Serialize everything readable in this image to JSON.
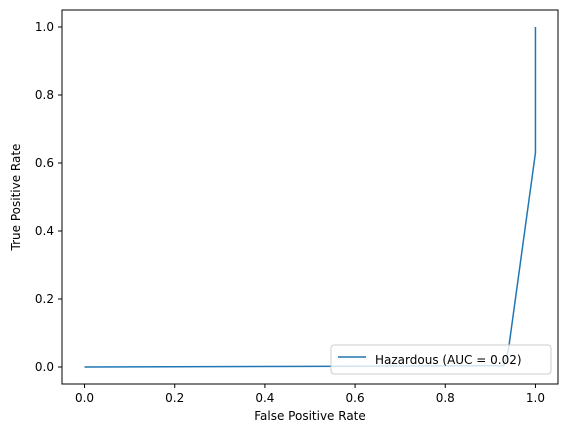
{
  "chart_data": {
    "type": "line",
    "title": "",
    "xlabel": "False Positive Rate",
    "ylabel": "True Positive Rate",
    "xlim": [
      -0.05,
      1.05
    ],
    "ylim": [
      -0.05,
      1.05
    ],
    "xticks": [
      0.0,
      0.2,
      0.4,
      0.6,
      0.8,
      1.0
    ],
    "yticks": [
      0.0,
      0.2,
      0.4,
      0.6,
      0.8,
      1.0
    ],
    "xtick_labels": [
      "0.0",
      "0.2",
      "0.4",
      "0.6",
      "0.8",
      "1.0"
    ],
    "ytick_labels": [
      "0.0",
      "0.2",
      "0.4",
      "0.6",
      "0.8",
      "1.0"
    ],
    "grid": false,
    "legend_position": "lower-right",
    "series": [
      {
        "name": "Hazardous (AUC = 0.02)",
        "color": "#1f77b4",
        "x": [
          0.0,
          0.5,
          0.93,
          0.94,
          1.0,
          1.0
        ],
        "y": [
          0.0,
          0.002,
          0.004,
          0.05,
          0.63,
          1.0
        ]
      }
    ]
  }
}
